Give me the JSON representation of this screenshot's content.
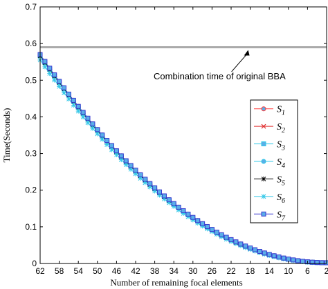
{
  "chart_data": {
    "type": "line",
    "xlabel": "Number of remaining focal elements",
    "ylabel": "Time(Seconds)",
    "xlim": [
      62,
      2
    ],
    "ylim": [
      0,
      0.7
    ],
    "x_reversed": true,
    "xticks": [
      62,
      58,
      56,
      54,
      52,
      50,
      48,
      46,
      44,
      42,
      40,
      38,
      36,
      34,
      32,
      30,
      28,
      26,
      24,
      22,
      20,
      18,
      16,
      14,
      12,
      10,
      8,
      6,
      4,
      2
    ],
    "xtick_labels": [
      "62",
      "58",
      "54",
      "50",
      "46",
      "42",
      "38",
      "34",
      "30",
      "26",
      "22",
      "18",
      "14",
      "10",
      "6",
      "2"
    ],
    "yticks": [
      0,
      0.1,
      0.2,
      0.3,
      0.4,
      0.5,
      0.6,
      0.7
    ],
    "ytick_labels": [
      "0",
      "0.1",
      "0.2",
      "0.3",
      "0.4",
      "0.5",
      "0.6",
      "0.7"
    ],
    "grid": false,
    "legend_position": "center-right",
    "reference_line": {
      "y": 0.59,
      "color": "#aaaaaa",
      "annotation": "Combination time of original BBA",
      "annotation_x": 18,
      "annotation_y": 0.495
    },
    "x": [
      62,
      61,
      60,
      59,
      58,
      57,
      56,
      55,
      54,
      53,
      52,
      51,
      50,
      49,
      48,
      47,
      46,
      45,
      44,
      43,
      42,
      41,
      40,
      39,
      38,
      37,
      36,
      35,
      34,
      33,
      32,
      31,
      30,
      29,
      28,
      27,
      26,
      25,
      24,
      23,
      22,
      21,
      20,
      19,
      18,
      17,
      16,
      15,
      14,
      13,
      12,
      11,
      10,
      9,
      8,
      7,
      6,
      5,
      4,
      3,
      2
    ],
    "series": [
      {
        "name": "S1",
        "symbol": "S",
        "sub": "1",
        "color": "#ff3b3b",
        "marker": "circle",
        "offset": 0
      },
      {
        "name": "S2",
        "symbol": "S",
        "sub": "2",
        "color": "#e03030",
        "marker": "x",
        "offset": 0
      },
      {
        "name": "S3",
        "symbol": "S",
        "sub": "3",
        "color": "#33c8e8",
        "marker": "square",
        "offset": -0.003
      },
      {
        "name": "S4",
        "symbol": "S",
        "sub": "4",
        "color": "#33c8e8",
        "marker": "circle",
        "offset": 0
      },
      {
        "name": "S5",
        "symbol": "S",
        "sub": "5",
        "color": "#000000",
        "marker": "star",
        "offset": -0.004
      },
      {
        "name": "S6",
        "symbol": "S",
        "sub": "6",
        "color": "#33c8e8",
        "marker": "star",
        "offset": -0.015
      },
      {
        "name": "S7",
        "symbol": "S",
        "sub": "7",
        "color": "#3a3ad0",
        "marker": "square",
        "offset": 0
      }
    ],
    "curve": {
      "y_at_62": 0.57,
      "y_at_2": 0.002,
      "exponent": 2.0
    }
  },
  "colors": {
    "axis": "#000000",
    "reference_line": "#aaaaaa",
    "marker_fill": "#5aaee8"
  }
}
